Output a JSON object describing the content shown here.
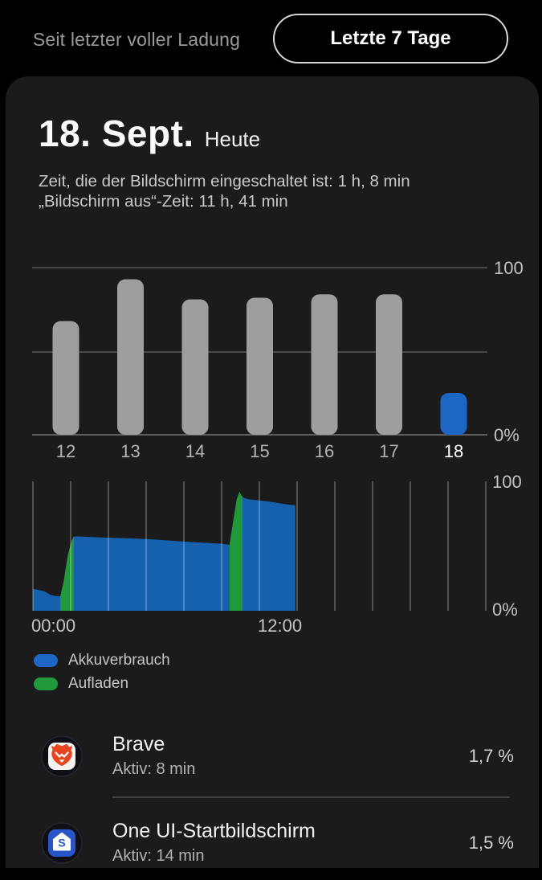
{
  "header": {
    "tab_since_charge": "Seit letzter voller Ladung",
    "tab_last_7_days": "Letzte 7 Tage"
  },
  "summary": {
    "date": "18. Sept.",
    "date_qualifier": "Heute",
    "screen_on": "Zeit, die der Bildschirm eingeschaltet ist: 1 h, 8 min",
    "screen_off": "„Bildschirm aus“-Zeit: 11 h, 41 min"
  },
  "chart_data": [
    {
      "type": "bar",
      "categories": [
        "12",
        "13",
        "14",
        "15",
        "16",
        "17",
        "18"
      ],
      "values": [
        68,
        93,
        81,
        82,
        84,
        84,
        25
      ],
      "highlight_index": 6,
      "ylim": [
        0,
        100
      ],
      "ytick_labels": [
        "100",
        "0%"
      ],
      "gridlines_at": [
        100,
        50,
        0
      ],
      "bar_color": "#9e9e9e",
      "highlight_color": "#1e66c4"
    },
    {
      "type": "area",
      "x_range_hours": [
        0,
        24
      ],
      "gridline_every_hours": 2,
      "ylim": [
        0,
        100
      ],
      "ytick_labels": [
        "100",
        "0%"
      ],
      "x_tick_labels": [
        {
          "hour": 0,
          "label": "00:00"
        },
        {
          "hour": 12,
          "label": "12:00"
        }
      ],
      "series": [
        {
          "name": "Akkuverbrauch",
          "color": "#1561ae",
          "points_hour_percent": [
            [
              0,
              17
            ],
            [
              0.6,
              15
            ],
            [
              0.95,
              12.2
            ],
            [
              1.2,
              11.4
            ],
            [
              1.45,
              11.2
            ],
            [
              1.62,
              22
            ],
            [
              1.85,
              43
            ],
            [
              2.05,
              54
            ],
            [
              2.17,
              57.5
            ],
            [
              3.5,
              56.8
            ],
            [
              6,
              55.5
            ],
            [
              8,
              53.5
            ],
            [
              10,
              51.8
            ],
            [
              10.42,
              51
            ],
            [
              10.6,
              68
            ],
            [
              10.8,
              86
            ],
            [
              10.95,
              92
            ],
            [
              11.05,
              89
            ],
            [
              11.2,
              87
            ],
            [
              11.5,
              86
            ],
            [
              12.5,
              84.5
            ],
            [
              13.3,
              82.5
            ],
            [
              13.9,
              81.5
            ]
          ]
        },
        {
          "name": "Aufladen",
          "color": "#21993a",
          "charge_intervals_hours": [
            [
              1.45,
              2.17
            ],
            [
              10.42,
              11.1
            ]
          ]
        }
      ]
    }
  ],
  "legend": {
    "items": [
      {
        "label": "Akkuverbrauch",
        "color": "#1e66c4"
      },
      {
        "label": "Aufladen",
        "color": "#21993a"
      }
    ]
  },
  "apps": [
    {
      "name": "Brave",
      "active": "Aktiv: 8 min",
      "percent": "1,7 %"
    },
    {
      "name": "One UI-Startbildschirm",
      "active": "Aktiv: 14 min",
      "percent": "1,5 %"
    }
  ],
  "colors": {
    "page_bg": "#000000",
    "card_bg": "#1b1b1b",
    "accent_blue": "#1e66c4",
    "area_blue": "#1561ae",
    "charge_green": "#21993a",
    "bar_gray": "#9e9e9e"
  }
}
